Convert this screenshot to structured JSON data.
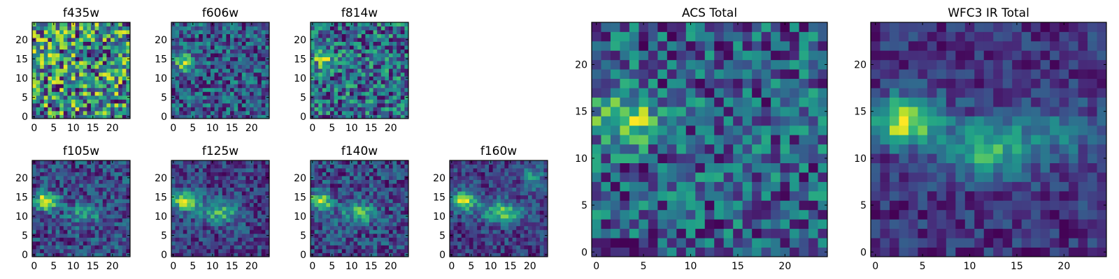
{
  "chart_data": {
    "type": "heatmap",
    "colormap": "viridis",
    "grid": false,
    "panels": [
      {
        "title": "f435w",
        "size": 25,
        "xlim": [
          0,
          24
        ],
        "ylim": [
          0,
          24
        ],
        "xticks": [
          0,
          5,
          10,
          15,
          20
        ],
        "yticks": [
          0,
          5,
          10,
          15,
          20
        ],
        "noise": 0.3,
        "blobs": [
          {
            "x": 2,
            "y": 14,
            "sx": 2.0,
            "sy": 1.5,
            "a": 0.15
          }
        ],
        "seed": 11
      },
      {
        "title": "f606w",
        "size": 25,
        "xlim": [
          0,
          24
        ],
        "ylim": [
          0,
          24
        ],
        "xticks": [
          0,
          5,
          10,
          15,
          20
        ],
        "yticks": [
          0,
          5,
          10,
          15,
          20
        ],
        "noise": 0.22,
        "blobs": [
          {
            "x": 3,
            "y": 14,
            "sx": 2.0,
            "sy": 1.5,
            "a": 0.4
          }
        ],
        "seed": 23
      },
      {
        "title": "f814w",
        "size": 25,
        "xlim": [
          0,
          24
        ],
        "ylim": [
          0,
          24
        ],
        "xticks": [
          0,
          5,
          10,
          15,
          20
        ],
        "yticks": [
          0,
          5,
          10,
          15,
          20
        ],
        "noise": 0.26,
        "blobs": [
          {
            "x": 3,
            "y": 15,
            "sx": 2.0,
            "sy": 1.5,
            "a": 0.3
          }
        ],
        "seed": 37
      },
      {
        "title": "f105w",
        "size": 25,
        "xlim": [
          0,
          24
        ],
        "ylim": [
          0,
          24
        ],
        "xticks": [
          0,
          5,
          10,
          15,
          20
        ],
        "yticks": [
          0,
          5,
          10,
          15,
          20
        ],
        "noise": 0.13,
        "blobs": [
          {
            "x": 3,
            "y": 14,
            "sx": 2.0,
            "sy": 1.5,
            "a": 0.45
          },
          {
            "x": 13,
            "y": 11,
            "sx": 3.0,
            "sy": 2.0,
            "a": 0.18
          }
        ],
        "seed": 41
      },
      {
        "title": "f125w",
        "size": 25,
        "xlim": [
          0,
          24
        ],
        "ylim": [
          0,
          24
        ],
        "xticks": [
          0,
          5,
          10,
          15,
          20
        ],
        "yticks": [
          0,
          5,
          10,
          15,
          20
        ],
        "noise": 0.13,
        "blobs": [
          {
            "x": 3,
            "y": 14,
            "sx": 2.5,
            "sy": 1.8,
            "a": 0.45
          },
          {
            "x": 12,
            "y": 11,
            "sx": 3.5,
            "sy": 2.0,
            "a": 0.3
          }
        ],
        "seed": 53
      },
      {
        "title": "f140w",
        "size": 25,
        "xlim": [
          0,
          24
        ],
        "ylim": [
          0,
          24
        ],
        "xticks": [
          0,
          5,
          10,
          15,
          20
        ],
        "yticks": [
          0,
          5,
          10,
          15,
          20
        ],
        "noise": 0.13,
        "blobs": [
          {
            "x": 2,
            "y": 14,
            "sx": 2.0,
            "sy": 1.5,
            "a": 0.45
          },
          {
            "x": 12,
            "y": 11,
            "sx": 3.0,
            "sy": 2.0,
            "a": 0.25
          }
        ],
        "seed": 67
      },
      {
        "title": "f160w",
        "size": 25,
        "xlim": [
          0,
          24
        ],
        "ylim": [
          0,
          24
        ],
        "xticks": [
          0,
          5,
          10,
          15,
          20
        ],
        "yticks": [
          0,
          5,
          10,
          15,
          20
        ],
        "noise": 0.13,
        "blobs": [
          {
            "x": 3,
            "y": 14,
            "sx": 2.5,
            "sy": 1.8,
            "a": 0.5
          },
          {
            "x": 13,
            "y": 11,
            "sx": 3.5,
            "sy": 2.0,
            "a": 0.4
          },
          {
            "x": 21,
            "y": 20,
            "sx": 2.0,
            "sy": 2.0,
            "a": 0.25
          }
        ],
        "seed": 79
      },
      {
        "title": "ACS Total",
        "size": 25,
        "xlim": [
          0,
          24
        ],
        "ylim": [
          0,
          24
        ],
        "xticks": [
          0,
          5,
          10,
          15,
          20
        ],
        "yticks": [
          0,
          5,
          10,
          15,
          20
        ],
        "noise": 0.2,
        "blobs": [
          {
            "x": 3,
            "y": 14,
            "sx": 2.5,
            "sy": 1.8,
            "a": 0.35
          }
        ],
        "seed": 97
      },
      {
        "title": "WFC3 IR Total",
        "size": 25,
        "xlim": [
          0,
          24
        ],
        "ylim": [
          0,
          24
        ],
        "xticks": [
          0,
          5,
          10,
          15,
          20
        ],
        "yticks": [
          0,
          5,
          10,
          15,
          20
        ],
        "noise": 0.11,
        "blobs": [
          {
            "x": 3,
            "y": 14,
            "sx": 2.5,
            "sy": 1.8,
            "a": 0.55
          },
          {
            "x": 12,
            "y": 11,
            "sx": 3.5,
            "sy": 2.2,
            "a": 0.35
          },
          {
            "x": 20,
            "y": 13,
            "sx": 3.0,
            "sy": 2.0,
            "a": 0.15
          }
        ],
        "seed": 113
      }
    ]
  }
}
